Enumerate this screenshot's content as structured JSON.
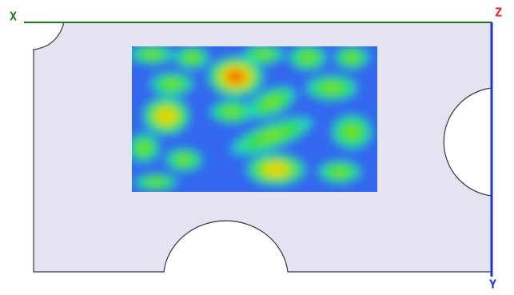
{
  "axes": {
    "x": "X",
    "z": "Z",
    "y": "Y"
  }
}
